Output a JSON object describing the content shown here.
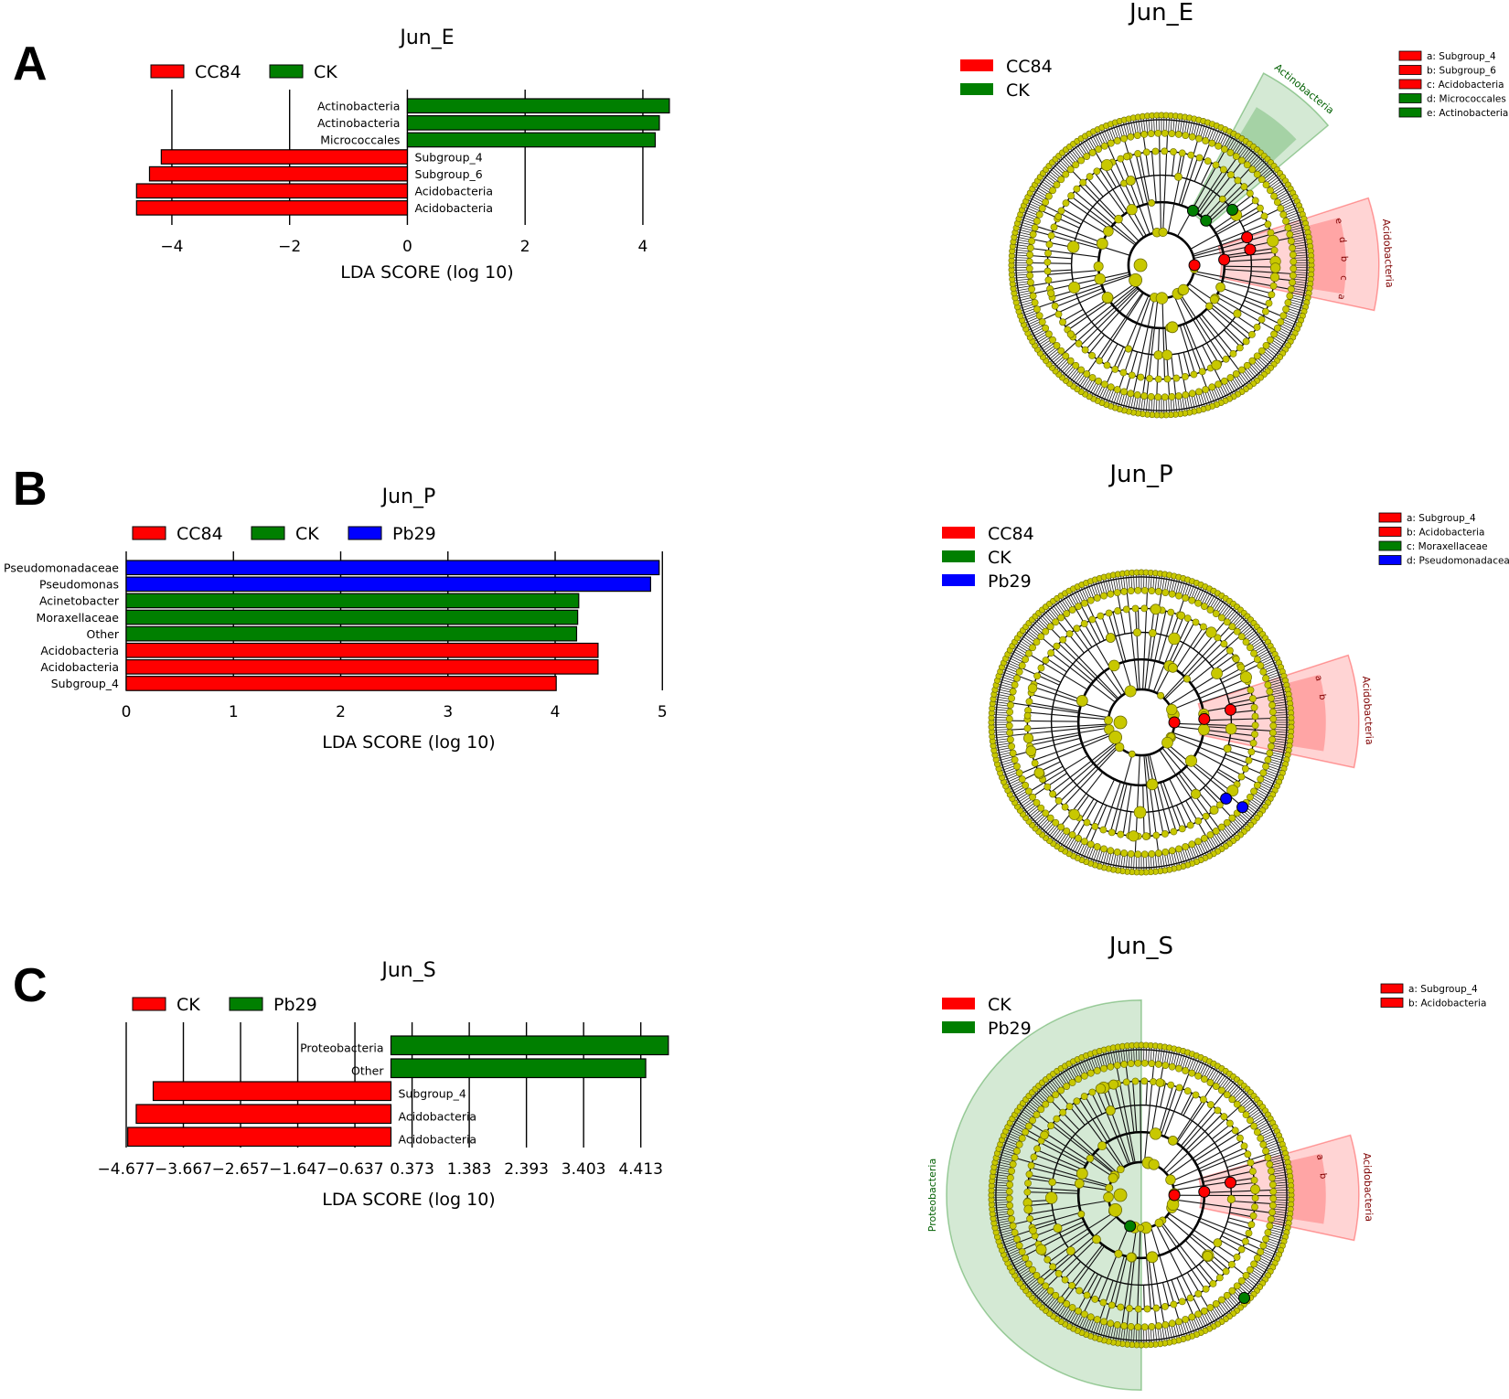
{
  "panels": [
    {
      "letter": "A"
    },
    {
      "letter": "B"
    },
    {
      "letter": "C"
    }
  ],
  "colors": {
    "red": "#ff0000",
    "green": "#007f00",
    "blue": "#0000ff",
    "node": "#bfbf00",
    "node_fill": "#c8c800"
  },
  "chart_data": [
    {
      "type": "bar",
      "orientation": "horizontal",
      "title": "Jun_E",
      "xlabel": "LDA SCORE (log 10)",
      "xlim": [
        -4.9,
        4.7
      ],
      "xticks": [
        -4,
        -2,
        0,
        2,
        4
      ],
      "xtick_labels": [
        "−4",
        "−2",
        "0",
        "2",
        "4"
      ],
      "legend": [
        {
          "name": "CC84",
          "color": "#ff0000"
        },
        {
          "name": "CK",
          "color": "#007f00"
        }
      ],
      "bars": [
        {
          "label": "Actinobacteria",
          "value": 4.45,
          "group": "CK"
        },
        {
          "label": "Actinobacteria",
          "value": 4.28,
          "group": "CK"
        },
        {
          "label": "Micrococcales",
          "value": 4.21,
          "group": "CK"
        },
        {
          "label": "Subgroup_4",
          "value": -4.18,
          "group": "CC84"
        },
        {
          "label": "Subgroup_6",
          "value": -4.38,
          "group": "CC84"
        },
        {
          "label": "Acidobacteria",
          "value": -4.6,
          "group": "CC84"
        },
        {
          "label": "Acidobacteria",
          "value": -4.6,
          "group": "CC84"
        }
      ]
    },
    {
      "type": "bar",
      "orientation": "horizontal",
      "title": "Jun_P",
      "xlabel": "LDA SCORE (log 10)",
      "xlim": [
        0,
        5.1
      ],
      "xticks": [
        0,
        1,
        2,
        3,
        4,
        5
      ],
      "xtick_labels": [
        "0",
        "1",
        "2",
        "3",
        "4",
        "5"
      ],
      "legend": [
        {
          "name": "CC84",
          "color": "#ff0000"
        },
        {
          "name": "CK",
          "color": "#007f00"
        },
        {
          "name": "Pb29",
          "color": "#0000ff"
        }
      ],
      "bars": [
        {
          "label": "Pseudomonadaceae",
          "value": 4.97,
          "group": "Pb29"
        },
        {
          "label": "Pseudomonas",
          "value": 4.89,
          "group": "Pb29"
        },
        {
          "label": "Acinetobacter",
          "value": 4.22,
          "group": "CK"
        },
        {
          "label": "Moraxellaceae",
          "value": 4.21,
          "group": "CK"
        },
        {
          "label": "Other",
          "value": 4.2,
          "group": "CK"
        },
        {
          "label": "Acidobacteria",
          "value": 4.4,
          "group": "CC84"
        },
        {
          "label": "Acidobacteria",
          "value": 4.4,
          "group": "CC84"
        },
        {
          "label": "Subgroup_4",
          "value": 4.01,
          "group": "CC84"
        }
      ]
    },
    {
      "type": "bar",
      "orientation": "horizontal",
      "title": "Jun_S",
      "xlabel": "LDA SCORE (log 10)",
      "xlim": [
        -4.677,
        5.0
      ],
      "xticks": [
        -4.677,
        -3.667,
        -2.657,
        -1.647,
        -0.637,
        0.373,
        1.383,
        2.393,
        3.403,
        4.413
      ],
      "xtick_labels": [
        "−4.677",
        "−3.667",
        "−2.657",
        "−1.647",
        "−0.637",
        "0.373",
        "1.383",
        "2.393",
        "3.403",
        "4.413"
      ],
      "legend": [
        {
          "name": "CK",
          "color": "#ff0000"
        },
        {
          "name": "Pb29",
          "color": "#007f00"
        }
      ],
      "bars": [
        {
          "label": "Proteobacteria",
          "value": 4.9,
          "group": "Pb29"
        },
        {
          "label": "Other",
          "value": 4.5,
          "group": "Pb29"
        },
        {
          "label": "Subgroup_4",
          "value": -4.2,
          "group": "CK"
        },
        {
          "label": "Acidobacteria",
          "value": -4.5,
          "group": "CK"
        },
        {
          "label": "Acidobacteria",
          "value": -4.65,
          "group": "CK"
        }
      ]
    }
  ],
  "cladograms": [
    {
      "title": "Jun_E",
      "legend": [
        {
          "name": "CC84",
          "color": "#ff0000"
        },
        {
          "name": "CK",
          "color": "#007f00"
        }
      ],
      "key": [
        {
          "text": "a: Subgroup_4",
          "color": "#ff0000"
        },
        {
          "text": "b: Subgroup_6",
          "color": "#ff0000"
        },
        {
          "text": "c: Acidobacteria",
          "color": "#ff0000"
        },
        {
          "text": "d: Micrococcales",
          "color": "#007f00"
        },
        {
          "text": "e: Actinobacteria",
          "color": "#007f00"
        }
      ],
      "highlights": [
        {
          "label": "Actinobacteria",
          "color": "#007f00",
          "start": -62,
          "end": -40,
          "inner": 0.4
        },
        {
          "label": "Acidobacteria",
          "color": "#ff0000",
          "start": -18,
          "end": 12,
          "inner": 0.4
        }
      ],
      "letters": [
        "e",
        "d",
        "b",
        "c",
        "a"
      ],
      "colored_nodes": [
        {
          "angle": -45,
          "level": 2,
          "color": "#007f00"
        },
        {
          "angle": -38,
          "level": 3,
          "color": "#007f00"
        },
        {
          "angle": -60,
          "level": 2,
          "color": "#007f00"
        },
        {
          "angle": -10,
          "level": 3,
          "color": "#ff0000"
        },
        {
          "angle": -5,
          "level": 2,
          "color": "#ff0000"
        },
        {
          "angle": 0,
          "level": 1,
          "color": "#ff0000"
        },
        {
          "angle": -18,
          "level": 3,
          "color": "#ff0000"
        }
      ]
    },
    {
      "title": "Jun_P",
      "legend": [
        {
          "name": "CC84",
          "color": "#ff0000"
        },
        {
          "name": "CK",
          "color": "#007f00"
        },
        {
          "name": "Pb29",
          "color": "#0000ff"
        }
      ],
      "key": [
        {
          "text": "a: Subgroup_4",
          "color": "#ff0000"
        },
        {
          "text": "b: Acidobacteria",
          "color": "#ff0000"
        },
        {
          "text": "c: Moraxellaceae",
          "color": "#007f00"
        },
        {
          "text": "d: Pseudomonadacea",
          "color": "#0000ff"
        }
      ],
      "highlights": [
        {
          "label": "Acidobacteria",
          "color": "#ff0000",
          "start": -18,
          "end": 12,
          "inner": 0.4
        }
      ],
      "letters": [
        "a",
        "b"
      ],
      "colored_nodes": [
        {
          "angle": 0,
          "level": 1,
          "color": "#ff0000"
        },
        {
          "angle": -3,
          "level": 2,
          "color": "#ff0000"
        },
        {
          "angle": -8,
          "level": 3,
          "color": "#ff0000"
        },
        {
          "angle": 42,
          "level": 4,
          "color": "#0000ff"
        },
        {
          "angle": 40,
          "level": 5,
          "color": "#0000ff"
        }
      ]
    },
    {
      "title": "Jun_S",
      "legend": [
        {
          "name": "CK",
          "color": "#ff0000"
        },
        {
          "name": "Pb29",
          "color": "#007f00"
        }
      ],
      "key": [
        {
          "text": "a: Subgroup_4",
          "color": "#ff0000"
        },
        {
          "text": "b: Acidobacteria",
          "color": "#ff0000"
        }
      ],
      "highlights": [
        {
          "label": "Proteobacteria",
          "color": "#007f00",
          "start": 90,
          "end": 270,
          "inner": 0.0,
          "outer_scale": 1.3
        },
        {
          "label": "Acidobacteria",
          "color": "#ff0000",
          "start": -16,
          "end": 12,
          "inner": 0.4
        }
      ],
      "letters": [
        "a",
        "b"
      ],
      "colored_nodes": [
        {
          "angle": 0,
          "level": 1,
          "color": "#ff0000"
        },
        {
          "angle": -3,
          "level": 2,
          "color": "#ff0000"
        },
        {
          "angle": -8,
          "level": 3,
          "color": "#ff0000"
        },
        {
          "angle": 110,
          "level": 1,
          "color": "#007f00"
        },
        {
          "angle": 45,
          "level": 6,
          "color": "#007f00"
        }
      ]
    }
  ]
}
